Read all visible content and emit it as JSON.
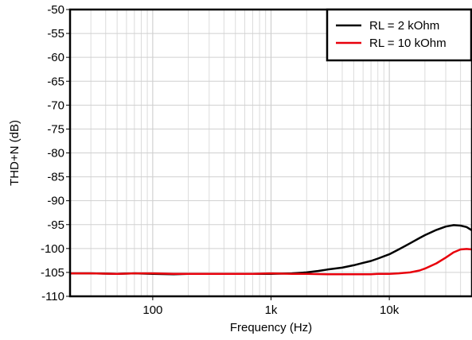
{
  "chart_data": {
    "type": "line",
    "title": "",
    "xlabel": "Frequency (Hz)",
    "ylabel": "THD+N (dB)",
    "x_scale": "log",
    "xlim": [
      20,
      50000
    ],
    "ylim": [
      -110,
      -50
    ],
    "grid": true,
    "legend_position": "top-right",
    "x_ticks": [
      {
        "value": 100,
        "label": "100"
      },
      {
        "value": 1000,
        "label": "1k"
      },
      {
        "value": 10000,
        "label": "10k"
      }
    ],
    "y_ticks": [
      -50,
      -55,
      -60,
      -65,
      -70,
      -75,
      -80,
      -85,
      -90,
      -95,
      -100,
      -105,
      -110
    ],
    "series": [
      {
        "name": "RL = 2 kOhm",
        "color": "#000000",
        "x": [
          20,
          30,
          50,
          70,
          100,
          150,
          200,
          300,
          500,
          700,
          1000,
          1500,
          2000,
          2500,
          3000,
          4000,
          5000,
          6000,
          7000,
          8000,
          10000,
          12000,
          15000,
          18000,
          20000,
          25000,
          30000,
          35000,
          40000,
          45000,
          50000
        ],
        "values": [
          -105.2,
          -105.2,
          -105.3,
          -105.2,
          -105.3,
          -105.4,
          -105.3,
          -105.3,
          -105.3,
          -105.3,
          -105.3,
          -105.2,
          -105.0,
          -104.7,
          -104.4,
          -104.0,
          -103.5,
          -103.0,
          -102.6,
          -102.1,
          -101.2,
          -100.2,
          -98.9,
          -97.8,
          -97.2,
          -96.1,
          -95.4,
          -95.1,
          -95.2,
          -95.5,
          -96.2
        ]
      },
      {
        "name": "RL = 10 kOhm",
        "color": "#e8000b",
        "x": [
          20,
          30,
          50,
          70,
          100,
          150,
          200,
          300,
          500,
          700,
          1000,
          1500,
          2000,
          3000,
          4000,
          5000,
          6000,
          7000,
          8000,
          10000,
          12000,
          15000,
          18000,
          20000,
          25000,
          30000,
          35000,
          40000,
          45000,
          50000
        ],
        "values": [
          -105.2,
          -105.2,
          -105.3,
          -105.2,
          -105.2,
          -105.3,
          -105.3,
          -105.3,
          -105.3,
          -105.3,
          -105.2,
          -105.3,
          -105.3,
          -105.4,
          -105.4,
          -105.4,
          -105.4,
          -105.4,
          -105.3,
          -105.3,
          -105.2,
          -105.0,
          -104.6,
          -104.2,
          -103.1,
          -101.9,
          -100.8,
          -100.2,
          -100.1,
          -100.2
        ]
      }
    ]
  }
}
